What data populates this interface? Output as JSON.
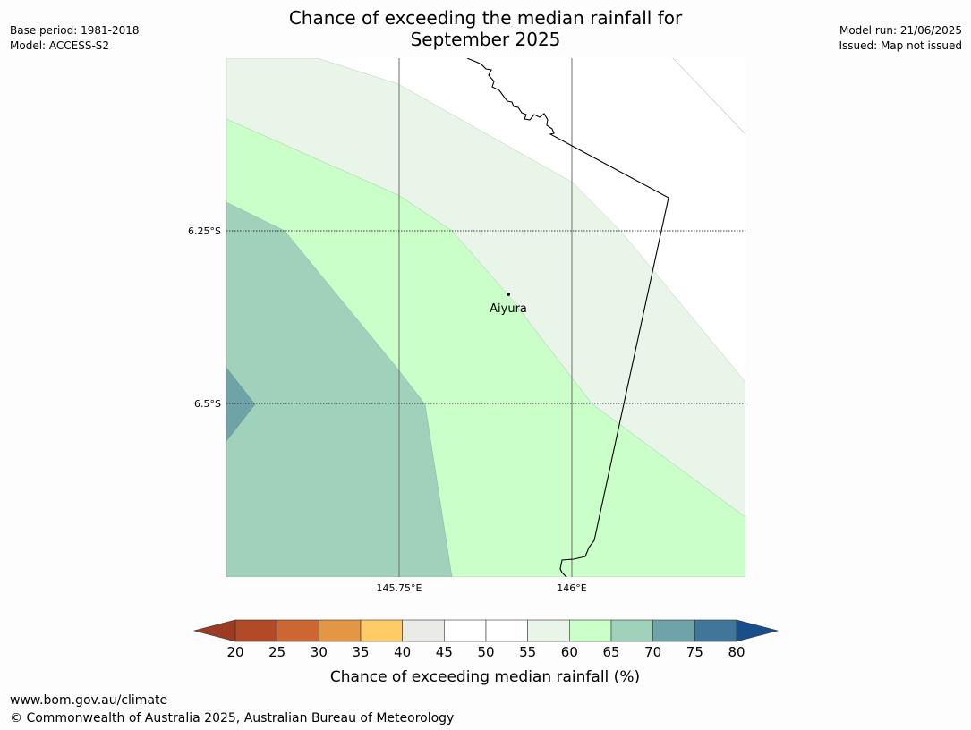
{
  "title": {
    "line1": "Chance of exceeding the median rainfall for",
    "line2": "September 2025"
  },
  "meta_left": {
    "base_period": "Base period: 1981-2018",
    "model": "Model: ACCESS-S2"
  },
  "meta_right": {
    "model_run": "Model run: 21/06/2025",
    "issued": "Issued: Map not issued"
  },
  "map": {
    "lat_labels": [
      "6.25°S",
      "6.5°S"
    ],
    "lon_labels": [
      "145.75°E",
      "146°E"
    ],
    "place": {
      "name": "Aiyura",
      "marker": "location-dot"
    }
  },
  "legend": {
    "title": "Chance of exceeding median rainfall (%)",
    "ticks": [
      "20",
      "25",
      "30",
      "35",
      "40",
      "45",
      "50",
      "55",
      "60",
      "65",
      "70",
      "75",
      "80"
    ],
    "colors": {
      "below_20": "#9b3b24",
      "20-25": "#b24a27",
      "25-30": "#cc6633",
      "30-35": "#e39644",
      "35-40": "#fdcc66",
      "40-45": "#eaeae6",
      "45-50": "#ffffff",
      "50-55": "#ffffff",
      "55-60": "#eaf5ea",
      "60-65": "#caffca",
      "65-70": "#9fd1bb",
      "70-75": "#6ea4a8",
      "75-80": "#3f7699",
      "above_80": "#184f8a"
    }
  },
  "footer": {
    "url": "www.bom.gov.au/climate",
    "copyright": "© Commonwealth of Australia 2025, Australian Bureau of Meteorology"
  }
}
